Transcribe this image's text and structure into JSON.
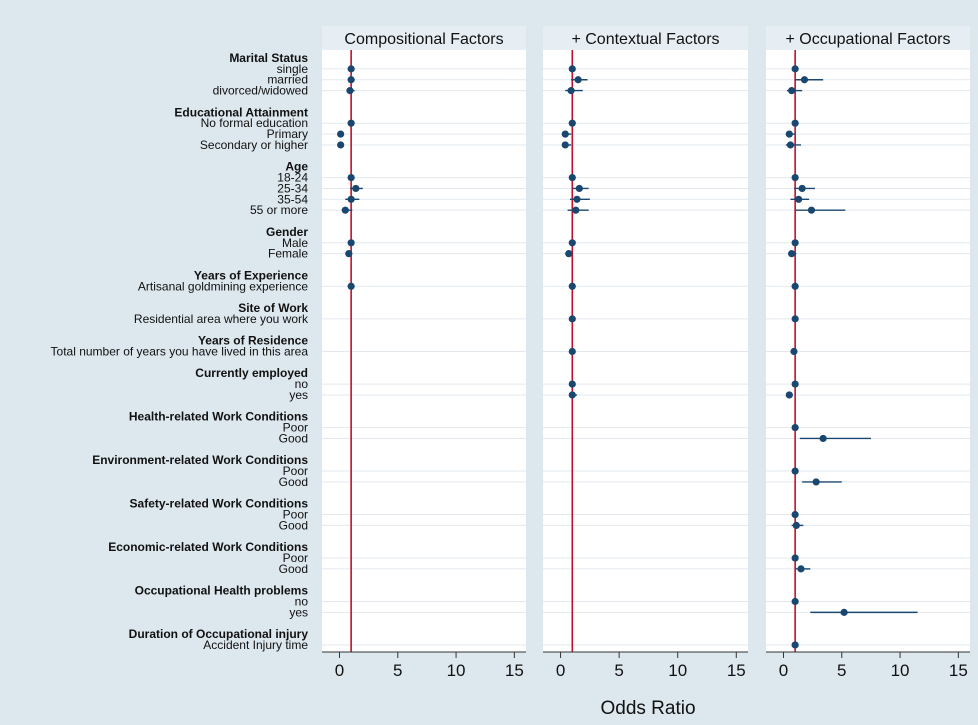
{
  "chart_data": {
    "type": "forest",
    "xlabel": "Odds Ratio",
    "xlim": [
      -1.5,
      16
    ],
    "xticks": [
      0,
      5,
      10,
      15
    ],
    "reference_line": 1,
    "colors": {
      "background": "#dde7ee",
      "plot_bg": "#ffffff",
      "header_bg": "#e6edf3",
      "marker": "#1a476f",
      "reference": "#c0112c"
    },
    "rows": [
      {
        "label": "Marital Status",
        "header": true
      },
      {
        "label": "single"
      },
      {
        "label": "married"
      },
      {
        "label": "divorced/widowed"
      },
      {
        "label": "",
        "spacer": true
      },
      {
        "label": "Educational Attainment",
        "header": true
      },
      {
        "label": "No formal education"
      },
      {
        "label": "Primary"
      },
      {
        "label": "Secondary or higher"
      },
      {
        "label": "",
        "spacer": true
      },
      {
        "label": "Age",
        "header": true
      },
      {
        "label": "18-24"
      },
      {
        "label": "25-34"
      },
      {
        "label": "35-54"
      },
      {
        "label": "55 or more"
      },
      {
        "label": "",
        "spacer": true
      },
      {
        "label": "Gender",
        "header": true
      },
      {
        "label": "Male"
      },
      {
        "label": "Female"
      },
      {
        "label": "",
        "spacer": true
      },
      {
        "label": "Years of Experience",
        "header": true
      },
      {
        "label": "Artisanal goldmining experience"
      },
      {
        "label": "",
        "spacer": true
      },
      {
        "label": "Site of Work",
        "header": true
      },
      {
        "label": "Residential area where you work"
      },
      {
        "label": "",
        "spacer": true
      },
      {
        "label": "Years of Residence",
        "header": true
      },
      {
        "label": "Total number of years you have lived in this area"
      },
      {
        "label": "",
        "spacer": true
      },
      {
        "label": "Currently employed",
        "header": true
      },
      {
        "label": "no"
      },
      {
        "label": "yes"
      },
      {
        "label": "",
        "spacer": true
      },
      {
        "label": "Health-related Work Conditions",
        "header": true
      },
      {
        "label": "Poor"
      },
      {
        "label": "Good"
      },
      {
        "label": "",
        "spacer": true
      },
      {
        "label": "Environment-related Work Conditions",
        "header": true
      },
      {
        "label": "Poor"
      },
      {
        "label": "Good"
      },
      {
        "label": "",
        "spacer": true
      },
      {
        "label": "Safety-related Work Conditions",
        "header": true
      },
      {
        "label": "Poor"
      },
      {
        "label": "Good"
      },
      {
        "label": "",
        "spacer": true
      },
      {
        "label": "Economic-related Work Conditions",
        "header": true
      },
      {
        "label": "Poor"
      },
      {
        "label": "Good"
      },
      {
        "label": "",
        "spacer": true
      },
      {
        "label": "Occupational Health problems",
        "header": true
      },
      {
        "label": "no"
      },
      {
        "label": "yes"
      },
      {
        "label": "",
        "spacer": true
      },
      {
        "label": "Duration of Occupational injury",
        "header": true
      },
      {
        "label": "Accident Injury time"
      }
    ],
    "panels": [
      {
        "title": "Compositional Factors",
        "estimates": [
          [
            1,
            1.0,
            1.0,
            1.0
          ],
          [
            2,
            1.0,
            0.8,
            1.3
          ],
          [
            3,
            0.9,
            0.6,
            1.3
          ],
          [
            6,
            1.0,
            1.0,
            1.0
          ],
          [
            7,
            0.1,
            0.05,
            0.3
          ],
          [
            8,
            0.1,
            0.05,
            0.3
          ],
          [
            11,
            1.0,
            1.0,
            1.0
          ],
          [
            12,
            1.4,
            0.9,
            2.0
          ],
          [
            13,
            1.0,
            0.5,
            1.7
          ],
          [
            14,
            0.5,
            0.2,
            1.1
          ],
          [
            17,
            1.0,
            1.0,
            1.0
          ],
          [
            18,
            0.8,
            0.6,
            1.0
          ],
          [
            21,
            1.0,
            0.95,
            1.05
          ]
        ]
      },
      {
        "title": "+ Contextual Factors",
        "estimates": [
          [
            1,
            1.0,
            1.0,
            1.0
          ],
          [
            2,
            1.5,
            0.9,
            2.3
          ],
          [
            3,
            0.9,
            0.4,
            1.9
          ],
          [
            6,
            1.0,
            1.0,
            1.0
          ],
          [
            7,
            0.4,
            0.2,
            0.9
          ],
          [
            8,
            0.4,
            0.2,
            0.9
          ],
          [
            11,
            1.0,
            1.0,
            1.0
          ],
          [
            12,
            1.6,
            1.0,
            2.4
          ],
          [
            13,
            1.4,
            0.8,
            2.5
          ],
          [
            14,
            1.3,
            0.6,
            2.4
          ],
          [
            17,
            1.0,
            1.0,
            1.0
          ],
          [
            18,
            0.7,
            0.5,
            1.0
          ],
          [
            21,
            1.0,
            0.95,
            1.05
          ],
          [
            24,
            1.0,
            0.95,
            1.05
          ],
          [
            27,
            1.0,
            0.97,
            1.03
          ],
          [
            30,
            1.0,
            1.0,
            1.0
          ],
          [
            31,
            1.0,
            0.8,
            1.4
          ]
        ]
      },
      {
        "title": "+ Occupational Factors",
        "estimates": [
          [
            1,
            1.0,
            1.0,
            1.0
          ],
          [
            2,
            1.8,
            1.0,
            3.4
          ],
          [
            3,
            0.7,
            0.3,
            1.6
          ],
          [
            6,
            1.0,
            1.0,
            1.0
          ],
          [
            7,
            0.5,
            0.2,
            1.0
          ],
          [
            8,
            0.6,
            0.2,
            1.5
          ],
          [
            11,
            1.0,
            1.0,
            1.0
          ],
          [
            12,
            1.6,
            0.9,
            2.7
          ],
          [
            13,
            1.3,
            0.6,
            2.2
          ],
          [
            14,
            2.4,
            1.0,
            5.3
          ],
          [
            17,
            1.0,
            1.0,
            1.0
          ],
          [
            18,
            0.7,
            0.4,
            1.1
          ],
          [
            21,
            1.0,
            0.95,
            1.05
          ],
          [
            24,
            1.0,
            0.95,
            1.05
          ],
          [
            27,
            0.9,
            0.85,
            1.0
          ],
          [
            30,
            1.0,
            1.0,
            1.0
          ],
          [
            31,
            0.5,
            0.3,
            0.8
          ],
          [
            34,
            1.0,
            1.0,
            1.0
          ],
          [
            35,
            3.4,
            1.4,
            7.5
          ],
          [
            38,
            1.0,
            1.0,
            1.0
          ],
          [
            39,
            2.8,
            1.6,
            5.0
          ],
          [
            42,
            1.0,
            1.0,
            1.0
          ],
          [
            43,
            1.1,
            0.7,
            1.7
          ],
          [
            46,
            1.0,
            1.0,
            1.0
          ],
          [
            47,
            1.5,
            1.0,
            2.3
          ],
          [
            50,
            1.0,
            1.0,
            1.0
          ],
          [
            51,
            5.2,
            2.3,
            11.5
          ],
          [
            54,
            1.0,
            0.95,
            1.05
          ]
        ]
      }
    ]
  }
}
